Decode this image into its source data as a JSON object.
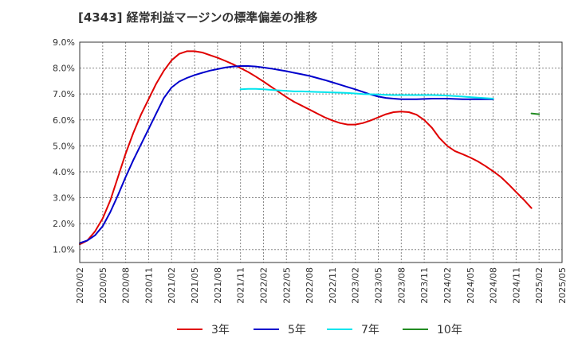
{
  "chart_data": {
    "type": "line",
    "title": "[4343]  経常利益マージンの標準偏差の推移",
    "xlabel": "",
    "ylabel": "",
    "x_ticks": [
      "2020/02",
      "2020/05",
      "2020/08",
      "2020/11",
      "2021/02",
      "2021/05",
      "2021/08",
      "2021/11",
      "2022/02",
      "2022/05",
      "2022/08",
      "2022/11",
      "2023/02",
      "2023/05",
      "2023/08",
      "2023/11",
      "2024/02",
      "2024/05",
      "2024/08",
      "2024/11",
      "2025/02",
      "2025/05"
    ],
    "y_ticks": [
      "1.0%",
      "2.0%",
      "3.0%",
      "4.0%",
      "5.0%",
      "6.0%",
      "7.0%",
      "8.0%",
      "9.0%"
    ],
    "ylim": [
      0.5,
      9.0
    ],
    "grid": true,
    "legend_position": "bottom",
    "series": [
      {
        "name": "3年",
        "color": "#e00000",
        "points": [
          [
            "2020/02",
            1.2
          ],
          [
            "2020/03",
            1.35
          ],
          [
            "2020/04",
            1.7
          ],
          [
            "2020/05",
            2.2
          ],
          [
            "2020/06",
            2.9
          ],
          [
            "2020/07",
            3.8
          ],
          [
            "2020/08",
            4.7
          ],
          [
            "2020/09",
            5.5
          ],
          [
            "2020/10",
            6.2
          ],
          [
            "2020/11",
            6.8
          ],
          [
            "2020/12",
            7.4
          ],
          [
            "2021/01",
            7.9
          ],
          [
            "2021/02",
            8.3
          ],
          [
            "2021/03",
            8.55
          ],
          [
            "2021/04",
            8.65
          ],
          [
            "2021/05",
            8.65
          ],
          [
            "2021/06",
            8.6
          ],
          [
            "2021/07",
            8.5
          ],
          [
            "2021/08",
            8.4
          ],
          [
            "2021/09",
            8.28
          ],
          [
            "2021/10",
            8.15
          ],
          [
            "2021/11",
            8.0
          ],
          [
            "2021/12",
            7.85
          ],
          [
            "2022/01",
            7.67
          ],
          [
            "2022/02",
            7.48
          ],
          [
            "2022/03",
            7.28
          ],
          [
            "2022/04",
            7.08
          ],
          [
            "2022/05",
            6.88
          ],
          [
            "2022/06",
            6.7
          ],
          [
            "2022/07",
            6.55
          ],
          [
            "2022/08",
            6.4
          ],
          [
            "2022/09",
            6.25
          ],
          [
            "2022/10",
            6.1
          ],
          [
            "2022/11",
            5.98
          ],
          [
            "2022/12",
            5.88
          ],
          [
            "2023/01",
            5.82
          ],
          [
            "2023/02",
            5.82
          ],
          [
            "2023/03",
            5.88
          ],
          [
            "2023/04",
            5.98
          ],
          [
            "2023/05",
            6.1
          ],
          [
            "2023/06",
            6.22
          ],
          [
            "2023/07",
            6.3
          ],
          [
            "2023/08",
            6.32
          ],
          [
            "2023/09",
            6.3
          ],
          [
            "2023/10",
            6.2
          ],
          [
            "2023/11",
            6.0
          ],
          [
            "2023/12",
            5.7
          ],
          [
            "2024/01",
            5.3
          ],
          [
            "2024/02",
            5.0
          ],
          [
            "2024/03",
            4.8
          ],
          [
            "2024/04",
            4.68
          ],
          [
            "2024/05",
            4.55
          ],
          [
            "2024/06",
            4.4
          ],
          [
            "2024/07",
            4.22
          ],
          [
            "2024/08",
            4.02
          ],
          [
            "2024/09",
            3.8
          ],
          [
            "2024/10",
            3.52
          ],
          [
            "2024/11",
            3.22
          ],
          [
            "2024/12",
            2.92
          ],
          [
            "2025/01",
            2.6
          ]
        ]
      },
      {
        "name": "5年",
        "color": "#0000cc",
        "points": [
          [
            "2020/02",
            1.25
          ],
          [
            "2020/03",
            1.35
          ],
          [
            "2020/04",
            1.55
          ],
          [
            "2020/05",
            1.9
          ],
          [
            "2020/06",
            2.45
          ],
          [
            "2020/07",
            3.1
          ],
          [
            "2020/08",
            3.8
          ],
          [
            "2020/09",
            4.45
          ],
          [
            "2020/10",
            5.05
          ],
          [
            "2020/11",
            5.65
          ],
          [
            "2020/12",
            6.25
          ],
          [
            "2021/01",
            6.85
          ],
          [
            "2021/02",
            7.25
          ],
          [
            "2021/03",
            7.48
          ],
          [
            "2021/04",
            7.62
          ],
          [
            "2021/05",
            7.73
          ],
          [
            "2021/06",
            7.82
          ],
          [
            "2021/07",
            7.9
          ],
          [
            "2021/08",
            7.96
          ],
          [
            "2021/09",
            8.02
          ],
          [
            "2021/10",
            8.06
          ],
          [
            "2021/11",
            8.08
          ],
          [
            "2021/12",
            8.08
          ],
          [
            "2022/01",
            8.06
          ],
          [
            "2022/02",
            8.02
          ],
          [
            "2022/03",
            7.98
          ],
          [
            "2022/04",
            7.93
          ],
          [
            "2022/05",
            7.88
          ],
          [
            "2022/06",
            7.82
          ],
          [
            "2022/07",
            7.76
          ],
          [
            "2022/08",
            7.7
          ],
          [
            "2022/09",
            7.62
          ],
          [
            "2022/10",
            7.54
          ],
          [
            "2022/11",
            7.45
          ],
          [
            "2022/12",
            7.36
          ],
          [
            "2023/01",
            7.27
          ],
          [
            "2023/02",
            7.18
          ],
          [
            "2023/03",
            7.08
          ],
          [
            "2023/04",
            6.98
          ],
          [
            "2023/05",
            6.9
          ],
          [
            "2023/06",
            6.85
          ],
          [
            "2023/07",
            6.82
          ],
          [
            "2023/08",
            6.8
          ],
          [
            "2023/09",
            6.8
          ],
          [
            "2023/10",
            6.8
          ],
          [
            "2023/11",
            6.81
          ],
          [
            "2023/12",
            6.82
          ],
          [
            "2024/01",
            6.82
          ],
          [
            "2024/02",
            6.82
          ],
          [
            "2024/03",
            6.81
          ],
          [
            "2024/04",
            6.8
          ],
          [
            "2024/05",
            6.8
          ],
          [
            "2024/06",
            6.8
          ],
          [
            "2024/07",
            6.8
          ],
          [
            "2024/08",
            6.8
          ]
        ]
      },
      {
        "name": "7年",
        "color": "#00e5ee",
        "points": [
          [
            "2021/11",
            7.18
          ],
          [
            "2021/12",
            7.2
          ],
          [
            "2022/01",
            7.2
          ],
          [
            "2022/02",
            7.18
          ],
          [
            "2022/03",
            7.16
          ],
          [
            "2022/04",
            7.14
          ],
          [
            "2022/05",
            7.12
          ],
          [
            "2022/06",
            7.1
          ],
          [
            "2022/07",
            7.1
          ],
          [
            "2022/08",
            7.09
          ],
          [
            "2022/09",
            7.08
          ],
          [
            "2022/10",
            7.07
          ],
          [
            "2022/11",
            7.06
          ],
          [
            "2022/12",
            7.05
          ],
          [
            "2023/01",
            7.04
          ],
          [
            "2023/02",
            7.02
          ],
          [
            "2023/03",
            7.0
          ],
          [
            "2023/04",
            6.99
          ],
          [
            "2023/05",
            6.98
          ],
          [
            "2023/06",
            6.97
          ],
          [
            "2023/07",
            6.96
          ],
          [
            "2023/08",
            6.96
          ],
          [
            "2023/09",
            6.96
          ],
          [
            "2023/10",
            6.96
          ],
          [
            "2023/11",
            6.96
          ],
          [
            "2023/12",
            6.96
          ],
          [
            "2024/01",
            6.95
          ],
          [
            "2024/02",
            6.94
          ],
          [
            "2024/03",
            6.92
          ],
          [
            "2024/04",
            6.9
          ],
          [
            "2024/05",
            6.88
          ],
          [
            "2024/06",
            6.86
          ],
          [
            "2024/07",
            6.84
          ],
          [
            "2024/08",
            6.82
          ]
        ]
      },
      {
        "name": "10年",
        "color": "#228b22",
        "points": [
          [
            "2025/01",
            6.25
          ],
          [
            "2025/02",
            6.22
          ]
        ]
      }
    ]
  }
}
